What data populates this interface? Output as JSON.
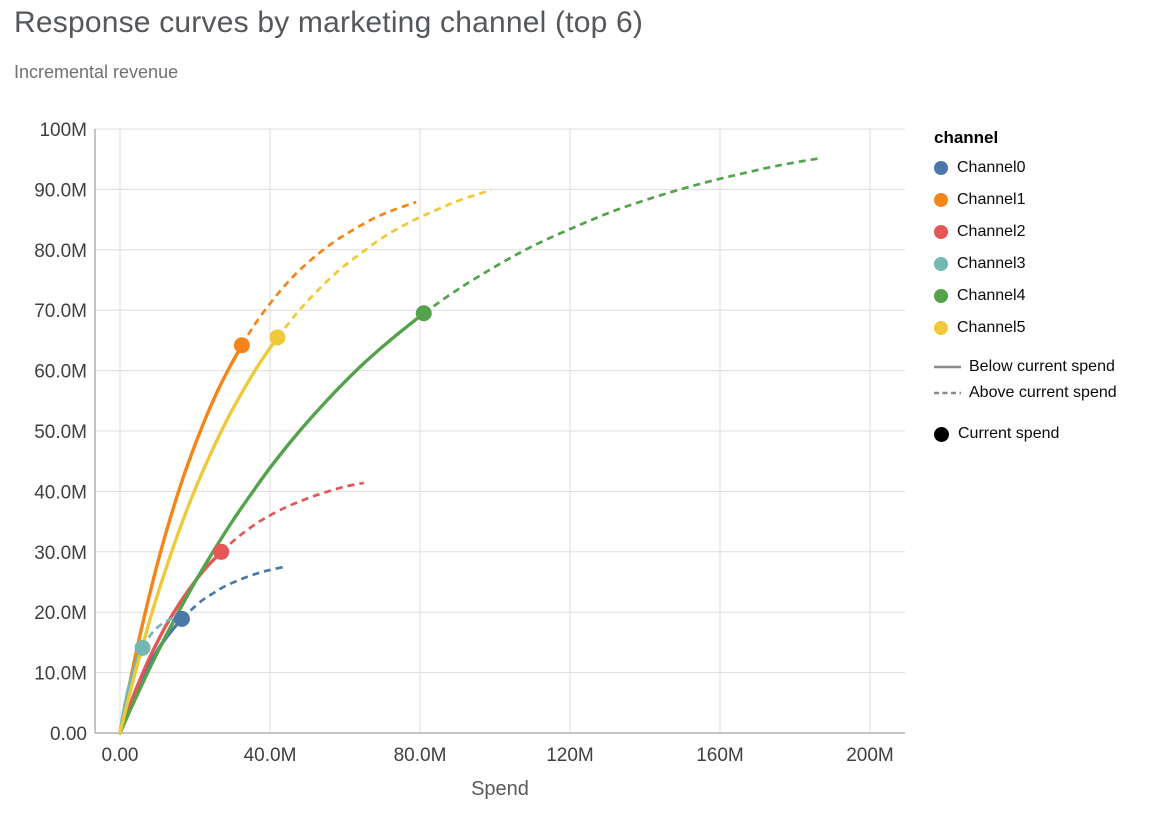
{
  "header": {
    "title": "Response curves by marketing channel (top 6)",
    "subtitle": "Incremental revenue"
  },
  "chart_data": {
    "type": "line",
    "title": "Response curves by marketing channel (top 6)",
    "subtitle": "Incremental revenue",
    "xlabel": "Spend",
    "ylabel": "Incremental revenue",
    "units": "axis values in millions (M)",
    "xlim": [
      0,
      200
    ],
    "ylim": [
      0,
      100
    ],
    "grid": true,
    "legend_position": "right",
    "x_ticks": [
      {
        "value": 0,
        "label": "0.00"
      },
      {
        "value": 40,
        "label": "40.0M"
      },
      {
        "value": 80,
        "label": "80.0M"
      },
      {
        "value": 120,
        "label": "120M"
      },
      {
        "value": 160,
        "label": "160M"
      },
      {
        "value": 200,
        "label": "200M"
      }
    ],
    "y_ticks": [
      {
        "value": 0,
        "label": "0.00"
      },
      {
        "value": 10,
        "label": "10.0M"
      },
      {
        "value": 20,
        "label": "20.0M"
      },
      {
        "value": 30,
        "label": "30.0M"
      },
      {
        "value": 40,
        "label": "40.0M"
      },
      {
        "value": 50,
        "label": "50.0M"
      },
      {
        "value": 60,
        "label": "60.0M"
      },
      {
        "value": 70,
        "label": "70.0M"
      },
      {
        "value": 80,
        "label": "80.0M"
      },
      {
        "value": 90,
        "label": "90.0M"
      },
      {
        "value": 100,
        "label": "100M"
      }
    ],
    "legend": {
      "title": "channel",
      "symbol_color": "#8a8a8a",
      "line_styles": [
        {
          "label": "Below current spend",
          "dashed": false
        },
        {
          "label": "Above current spend",
          "dashed": true
        }
      ],
      "point_style": {
        "label": "Current spend",
        "color": "#000000"
      }
    },
    "series": [
      {
        "name": "Channel0",
        "color": "#4c78a8",
        "current_spend": {
          "x": 16.5,
          "y": 18.9
        },
        "points": [
          [
            0,
            0
          ],
          [
            1,
            1.8
          ],
          [
            2,
            3.4
          ],
          [
            3,
            5.0
          ],
          [
            4,
            6.5
          ],
          [
            6,
            9.2
          ],
          [
            8,
            11.6
          ],
          [
            10,
            13.7
          ],
          [
            12,
            15.5
          ],
          [
            14,
            17.1
          ],
          [
            16.5,
            18.9
          ],
          [
            19,
            20.4
          ],
          [
            22,
            22.0
          ],
          [
            25,
            23.2
          ],
          [
            28,
            24.3
          ],
          [
            32,
            25.4
          ],
          [
            36,
            26.3
          ],
          [
            40,
            27.0
          ],
          [
            44.5,
            27.6
          ]
        ]
      },
      {
        "name": "Channel1",
        "color": "#f58518",
        "current_spend": {
          "x": 32.5,
          "y": 64.2
        },
        "points": [
          [
            0,
            0
          ],
          [
            1.5,
            4.9
          ],
          [
            3,
            9.5
          ],
          [
            4.5,
            13.9
          ],
          [
            6,
            18.0
          ],
          [
            8,
            23.2
          ],
          [
            10,
            28.1
          ],
          [
            12,
            32.6
          ],
          [
            14,
            36.8
          ],
          [
            17,
            42.6
          ],
          [
            20,
            47.7
          ],
          [
            23,
            52.4
          ],
          [
            26,
            56.6
          ],
          [
            29,
            60.3
          ],
          [
            32.5,
            64.2
          ],
          [
            36,
            67.7
          ],
          [
            40,
            71.1
          ],
          [
            44,
            74.1
          ],
          [
            48,
            76.7
          ],
          [
            53,
            79.4
          ],
          [
            58,
            81.7
          ],
          [
            63,
            83.6
          ],
          [
            68,
            85.3
          ],
          [
            73,
            86.6
          ],
          [
            79,
            87.9
          ]
        ]
      },
      {
        "name": "Channel2",
        "color": "#e45756",
        "current_spend": {
          "x": 27,
          "y": 30.0
        },
        "points": [
          [
            0,
            0
          ],
          [
            1.5,
            2.7
          ],
          [
            3,
            5.2
          ],
          [
            4.5,
            7.6
          ],
          [
            6,
            9.8
          ],
          [
            8,
            12.6
          ],
          [
            10,
            15.1
          ],
          [
            12,
            17.5
          ],
          [
            14,
            19.6
          ],
          [
            17,
            22.5
          ],
          [
            20,
            25.1
          ],
          [
            23,
            27.4
          ],
          [
            27,
            30.0
          ],
          [
            31,
            32.2
          ],
          [
            35,
            34.1
          ],
          [
            39,
            35.7
          ],
          [
            44,
            37.3
          ],
          [
            49,
            38.6
          ],
          [
            54,
            39.7
          ],
          [
            60,
            40.8
          ],
          [
            65,
            41.4
          ]
        ]
      },
      {
        "name": "Channel3",
        "color": "#72b7b2",
        "current_spend": {
          "x": 6,
          "y": 14.1
        },
        "points": [
          [
            0,
            0
          ],
          [
            0.5,
            1.9
          ],
          [
            1,
            3.7
          ],
          [
            1.5,
            5.2
          ],
          [
            2,
            6.7
          ],
          [
            2.5,
            7.9
          ],
          [
            3,
            9.1
          ],
          [
            3.5,
            10.2
          ],
          [
            4,
            11.1
          ],
          [
            5,
            12.8
          ],
          [
            6,
            14.1
          ],
          [
            7,
            15.2
          ],
          [
            8,
            16.1
          ],
          [
            9,
            16.9
          ],
          [
            10,
            17.5
          ],
          [
            11.5,
            18.2
          ],
          [
            13,
            18.7
          ],
          [
            14.5,
            19.1
          ],
          [
            16,
            19.4
          ]
        ]
      },
      {
        "name": "Channel4",
        "color": "#54a24b",
        "current_spend": {
          "x": 81,
          "y": 69.5
        },
        "points": [
          [
            0,
            0
          ],
          [
            3,
            4.2
          ],
          [
            6,
            8.2
          ],
          [
            9,
            12.1
          ],
          [
            12,
            15.8
          ],
          [
            16,
            20.5
          ],
          [
            20,
            25.0
          ],
          [
            25,
            30.2
          ],
          [
            30,
            35.1
          ],
          [
            35,
            39.6
          ],
          [
            40,
            43.9
          ],
          [
            46,
            48.6
          ],
          [
            52,
            52.9
          ],
          [
            58,
            56.9
          ],
          [
            65,
            61.2
          ],
          [
            72,
            65.0
          ],
          [
            81,
            69.5
          ],
          [
            90,
            73.4
          ],
          [
            100,
            77.2
          ],
          [
            110,
            80.6
          ],
          [
            121,
            83.7
          ],
          [
            132,
            86.5
          ],
          [
            143,
            88.8
          ],
          [
            154,
            90.8
          ],
          [
            165,
            92.5
          ],
          [
            176,
            94.0
          ],
          [
            187,
            95.2
          ]
        ]
      },
      {
        "name": "Channel5",
        "color": "#eeca3b",
        "current_spend": {
          "x": 42,
          "y": 65.5
        },
        "points": [
          [
            0,
            0
          ],
          [
            1.5,
            3.8
          ],
          [
            3,
            7.5
          ],
          [
            4.5,
            11.0
          ],
          [
            6,
            14.4
          ],
          [
            8,
            18.8
          ],
          [
            10,
            22.9
          ],
          [
            12,
            26.7
          ],
          [
            15,
            32.2
          ],
          [
            18,
            37.2
          ],
          [
            21,
            41.8
          ],
          [
            24,
            46.0
          ],
          [
            28,
            51.2
          ],
          [
            32,
            55.8
          ],
          [
            37,
            61.0
          ],
          [
            42,
            65.5
          ],
          [
            47,
            69.4
          ],
          [
            52,
            72.8
          ],
          [
            58,
            76.4
          ],
          [
            64,
            79.3
          ],
          [
            70,
            82.0
          ],
          [
            77,
            84.5
          ],
          [
            84,
            86.5
          ],
          [
            91,
            88.3
          ],
          [
            99,
            89.9
          ]
        ]
      }
    ]
  }
}
